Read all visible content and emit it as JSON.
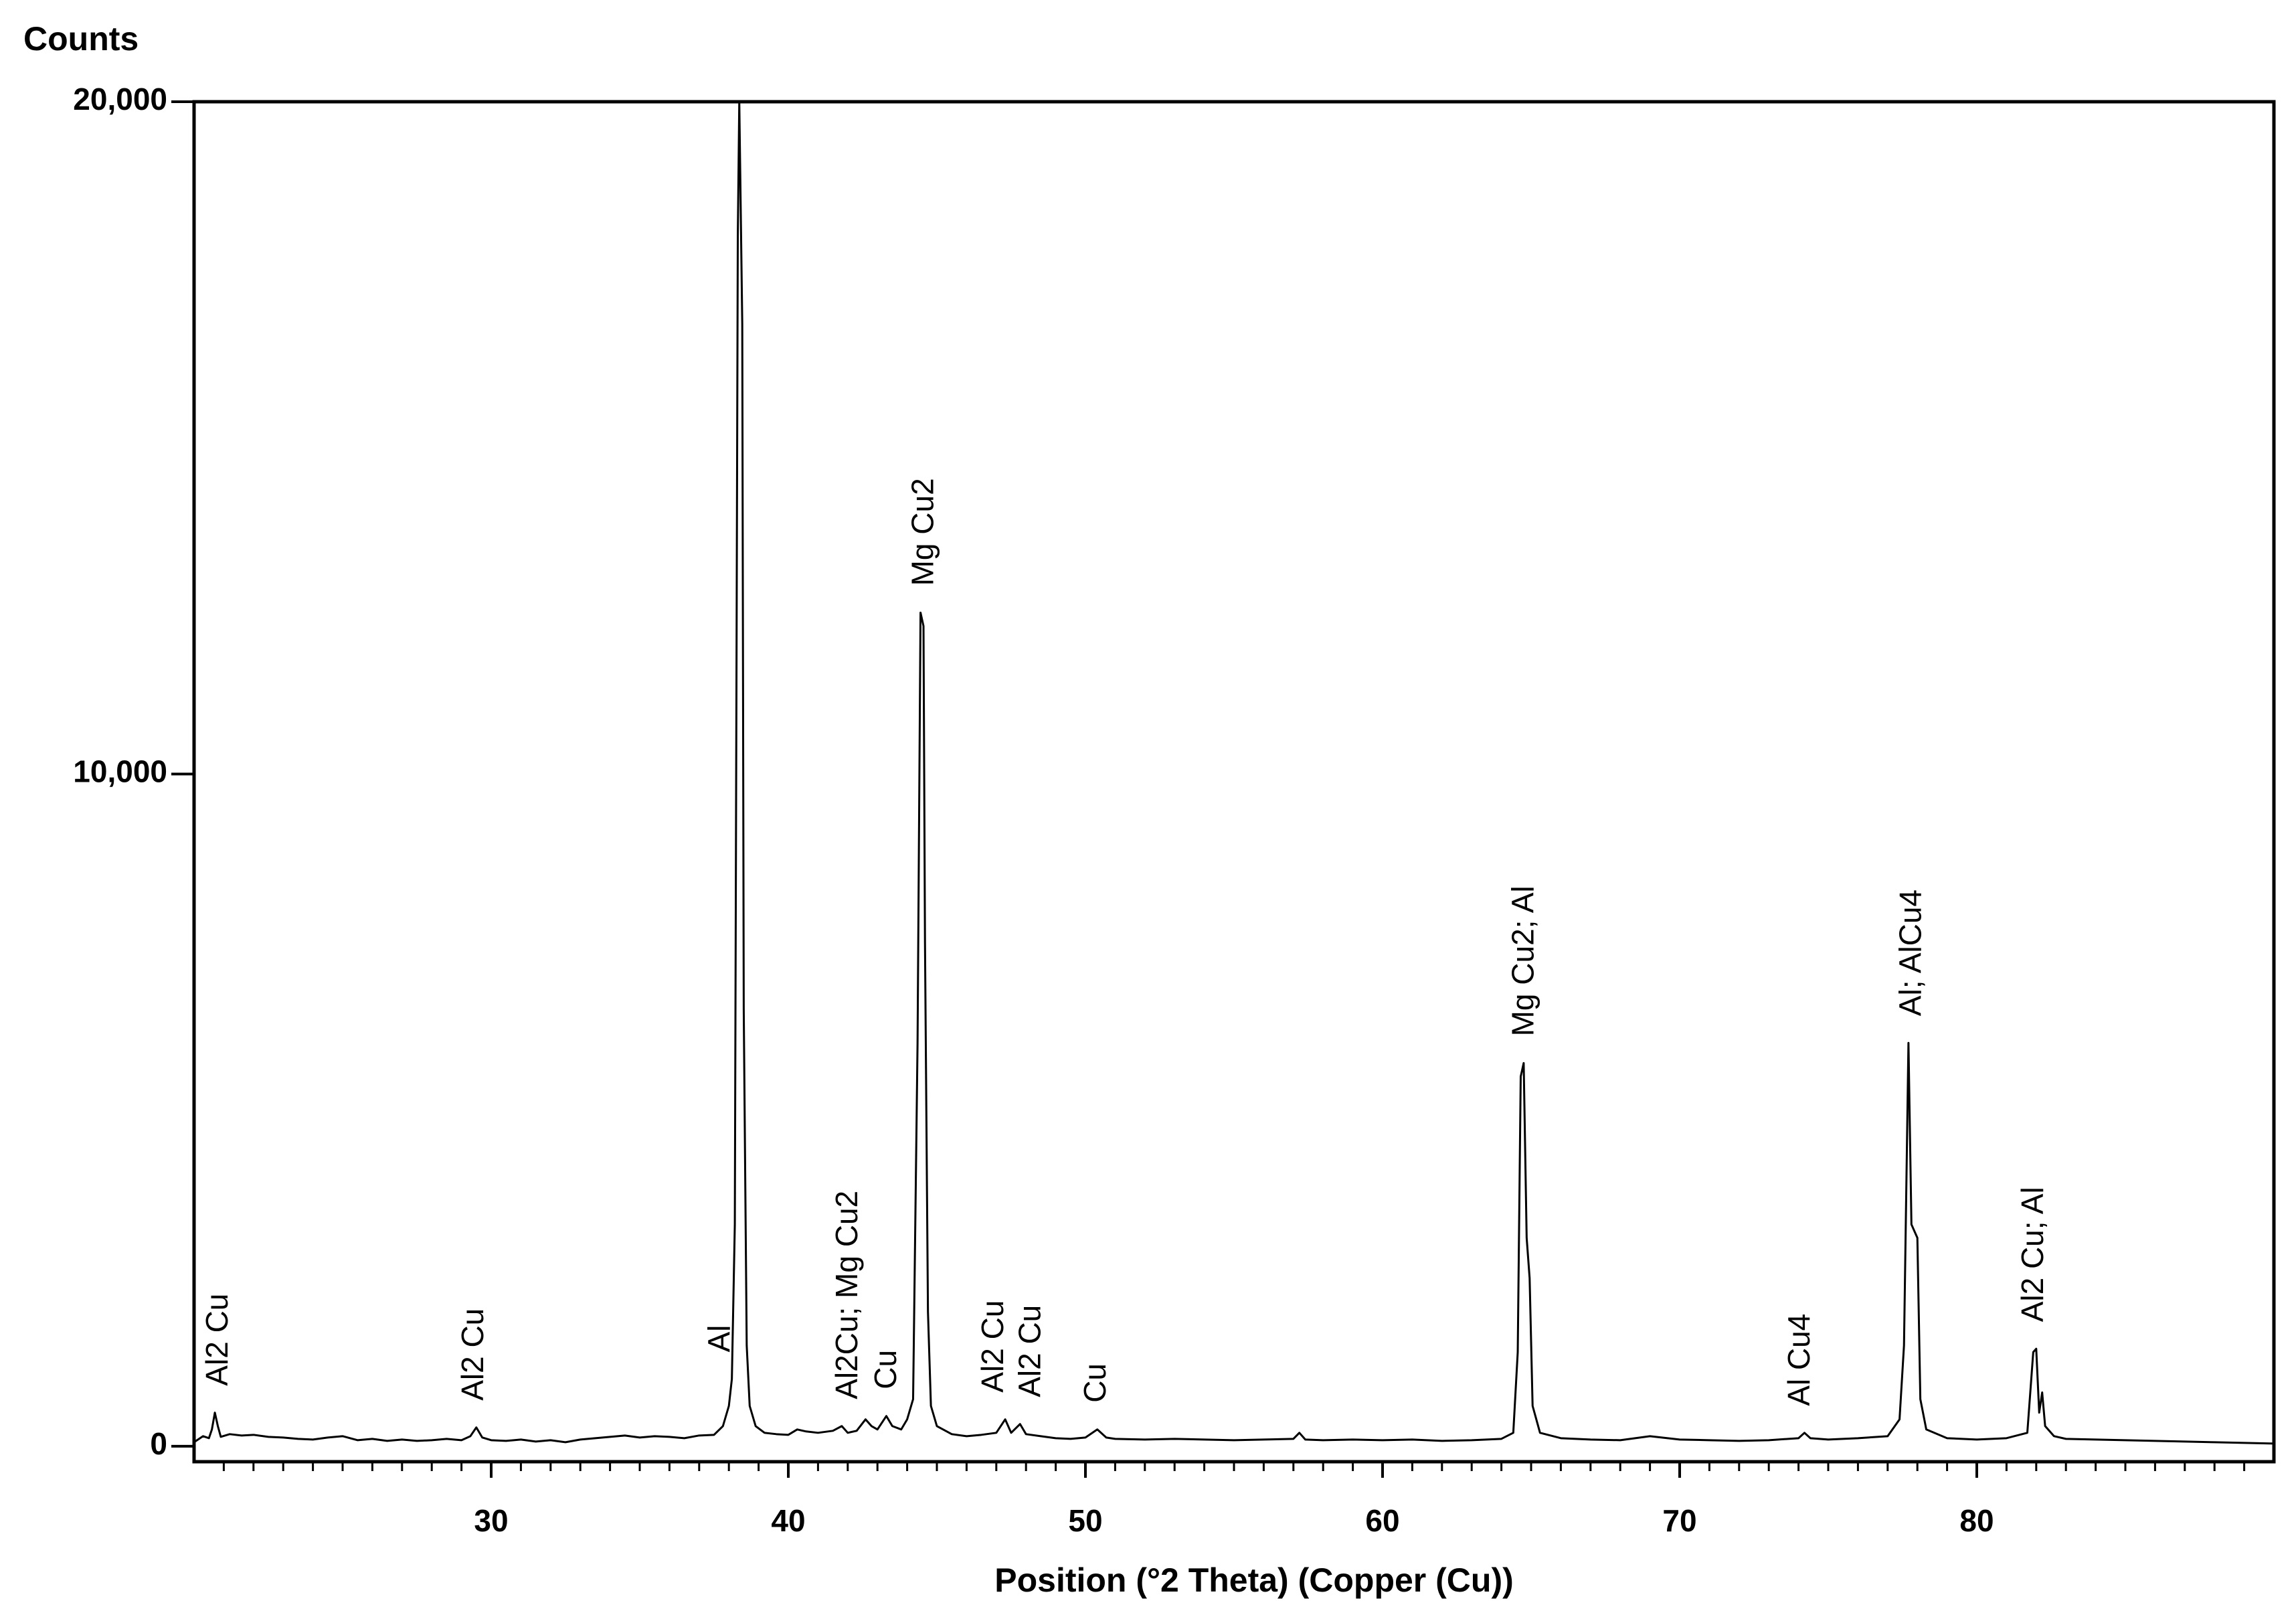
{
  "chart_data": {
    "type": "line",
    "y_label": "Counts",
    "x_label": "Position (°2 Theta) (Copper (Cu))",
    "color": "#000000",
    "xlim": [
      20,
      90
    ],
    "ylim": [
      -230,
      20000
    ],
    "xticks": [
      30,
      40,
      50,
      60,
      70,
      80
    ],
    "xminorticks": [
      21,
      22,
      23,
      24,
      25,
      26,
      27,
      28,
      29,
      31,
      32,
      33,
      34,
      35,
      36,
      37,
      38,
      39,
      41,
      42,
      43,
      44,
      45,
      46,
      47,
      48,
      49,
      51,
      52,
      53,
      54,
      55,
      56,
      57,
      58,
      59,
      61,
      62,
      63,
      64,
      65,
      66,
      67,
      68,
      69,
      71,
      72,
      73,
      74,
      75,
      76,
      77,
      78,
      79,
      81,
      82,
      83,
      84,
      85,
      86,
      87,
      88,
      89
    ],
    "yticks": [
      0,
      {
        "value": 10000,
        "label": "10,000"
      },
      {
        "value": 20000,
        "label": "20,000"
      }
    ],
    "x": [
      20.0,
      20.3,
      20.5,
      20.6,
      20.7,
      20.8,
      20.9,
      21.2,
      21.6,
      22.0,
      22.5,
      23.0,
      23.5,
      24.0,
      24.5,
      25.0,
      25.5,
      26.0,
      26.5,
      27.0,
      27.5,
      28.0,
      28.5,
      29.0,
      29.3,
      29.5,
      29.7,
      30.0,
      30.5,
      31.0,
      31.5,
      32.0,
      32.5,
      33.0,
      33.5,
      34.0,
      34.5,
      35.0,
      35.5,
      36.0,
      36.5,
      37.0,
      37.5,
      37.8,
      38.0,
      38.1,
      38.2,
      38.3,
      38.35,
      38.45,
      38.5,
      38.6,
      38.7,
      38.9,
      39.2,
      39.6,
      40.0,
      40.3,
      40.6,
      41.0,
      41.5,
      41.8,
      42.0,
      42.3,
      42.6,
      42.8,
      43.0,
      43.3,
      43.5,
      43.8,
      44.0,
      44.2,
      44.35,
      44.45,
      44.55,
      44.6,
      44.7,
      44.8,
      45.0,
      45.5,
      46.0,
      46.5,
      47.0,
      47.3,
      47.5,
      47.8,
      48.0,
      48.5,
      49.0,
      49.5,
      50.0,
      50.4,
      50.7,
      51.0,
      52.0,
      53.0,
      54.0,
      55.0,
      56.0,
      57.0,
      57.2,
      57.4,
      58.0,
      59.0,
      60.0,
      61.0,
      62.0,
      63.0,
      64.0,
      64.4,
      64.55,
      64.65,
      64.75,
      64.85,
      64.95,
      65.05,
      65.3,
      66.0,
      67.0,
      68.0,
      69.0,
      70.0,
      71.0,
      72.0,
      73.0,
      74.0,
      74.2,
      74.4,
      75.0,
      76.0,
      77.0,
      77.4,
      77.55,
      77.7,
      77.8,
      77.9,
      78.0,
      78.1,
      78.3,
      79.0,
      80.0,
      81.0,
      81.7,
      81.9,
      82.0,
      82.1,
      82.2,
      82.3,
      82.6,
      83.0,
      84.0,
      85.0,
      86.0,
      87.0,
      88.0,
      89.0,
      90.0
    ],
    "values": [
      60,
      150,
      120,
      250,
      500,
      300,
      140,
      180,
      160,
      170,
      140,
      130,
      110,
      100,
      130,
      150,
      90,
      110,
      80,
      100,
      80,
      90,
      110,
      90,
      150,
      280,
      130,
      90,
      80,
      100,
      70,
      90,
      60,
      100,
      120,
      140,
      160,
      130,
      150,
      140,
      120,
      160,
      170,
      300,
      600,
      1000,
      3300,
      18000,
      20000,
      16700,
      6500,
      1500,
      600,
      300,
      200,
      180,
      170,
      250,
      220,
      200,
      230,
      300,
      200,
      230,
      400,
      300,
      250,
      450,
      300,
      250,
      400,
      700,
      6000,
      12400,
      12200,
      7500,
      2000,
      600,
      300,
      180,
      150,
      170,
      200,
      400,
      200,
      330,
      180,
      150,
      120,
      110,
      130,
      250,
      130,
      110,
      100,
      110,
      100,
      90,
      100,
      110,
      200,
      100,
      90,
      100,
      90,
      100,
      80,
      90,
      110,
      200,
      1400,
      5500,
      5700,
      3100,
      2500,
      600,
      200,
      120,
      100,
      90,
      150,
      100,
      90,
      80,
      90,
      120,
      200,
      120,
      100,
      120,
      150,
      400,
      1500,
      6000,
      3300,
      3200,
      3100,
      700,
      250,
      120,
      100,
      120,
      200,
      1400,
      1450,
      500,
      800,
      300,
      150,
      110,
      100,
      90,
      80,
      70,
      60,
      50,
      40
    ],
    "annotations": [
      {
        "text": "Al2 Cu",
        "x": 20.85
      },
      {
        "text": "Al2 Cu",
        "x": 29.45
      },
      {
        "text": "Al",
        "x": 37.75
      },
      {
        "text": "Al2Cu; Mg Cu2",
        "x": 42.05
      },
      {
        "text": "Cu",
        "x": 43.35
      },
      {
        "text": "Mg Cu2",
        "x": 44.6
      },
      {
        "text": "Al2 Cu",
        "x": 46.95
      },
      {
        "text": "Al2 Cu",
        "x": 48.2
      },
      {
        "text": "Cu",
        "x": 50.4
      },
      {
        "text": "Mg Cu2; Al",
        "x": 64.8
      },
      {
        "text": "Al Cu4",
        "x": 74.1
      },
      {
        "text": "Al; AlCu4",
        "x": 77.85
      },
      {
        "text": "Al2 Cu; Al",
        "x": 81.95
      }
    ]
  }
}
